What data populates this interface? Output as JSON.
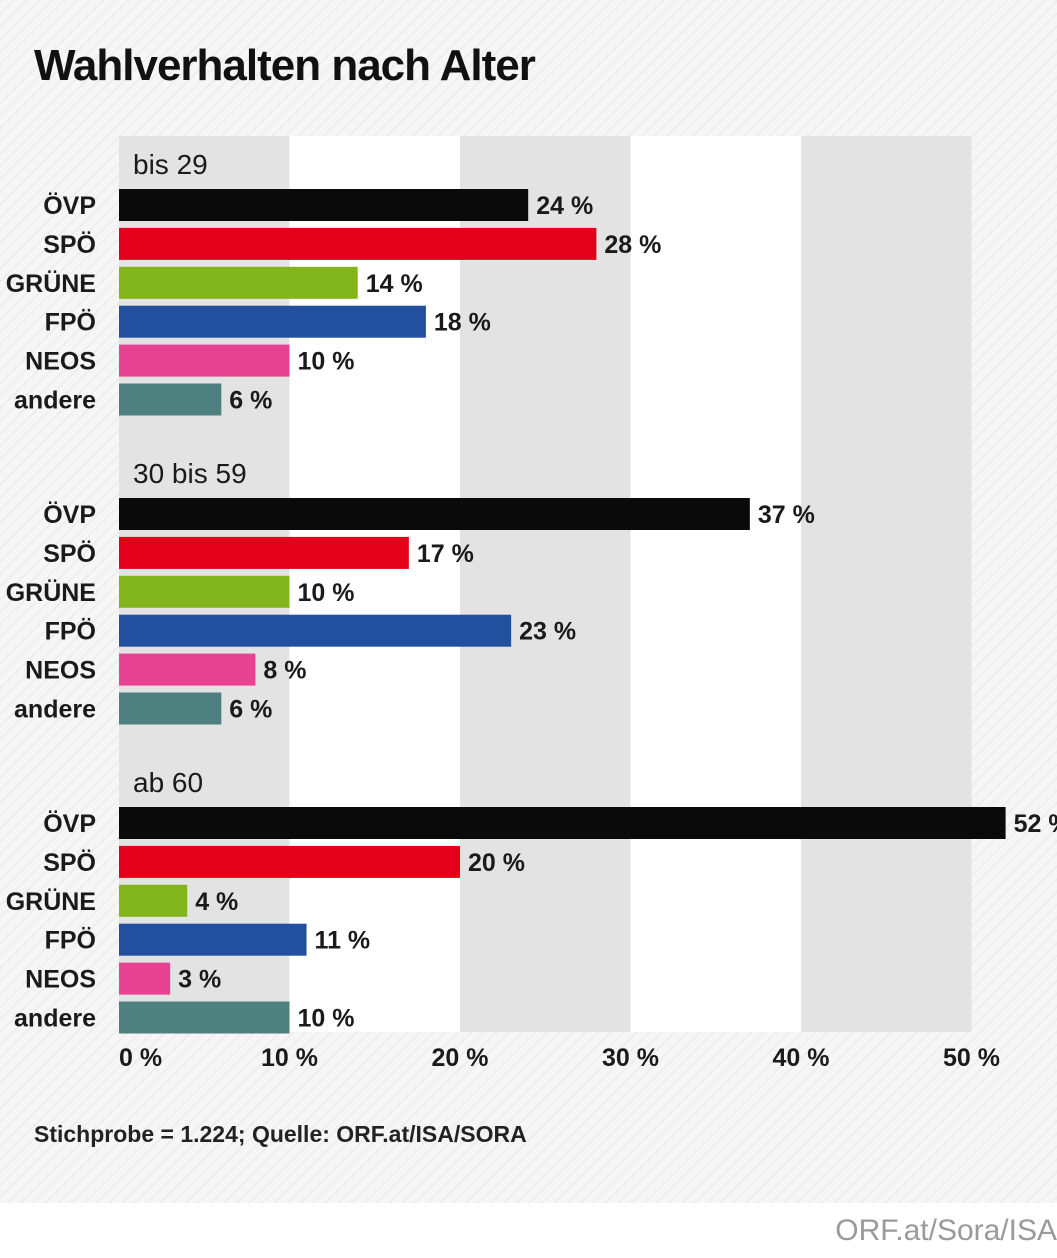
{
  "header": {
    "title": "Wahlverhalten nach Alter"
  },
  "footer": {
    "source": "Stichprobe = 1.224; Quelle: ORF.at/ISA/SORA",
    "credit": "ORF.at/Sora/ISA"
  },
  "chart_data": {
    "type": "bar",
    "orientation": "horizontal",
    "title": "Wahlverhalten nach Alter",
    "xlabel": "",
    "ylabel": "",
    "xlim": [
      0,
      50
    ],
    "x_ticks": [
      0,
      10,
      20,
      30,
      40,
      50
    ],
    "x_tick_labels": [
      "0 %",
      "10 %",
      "20 %",
      "30 %",
      "40 %",
      "50 %"
    ],
    "value_suffix": " %",
    "grid": "alternating vertical bands",
    "legend": "none",
    "categories": [
      "ÖVP",
      "SPÖ",
      "GRÜNE",
      "FPÖ",
      "NEOS",
      "andere"
    ],
    "category_colors": [
      "#0a0a0a",
      "#e2001a",
      "#82b41b",
      "#23509e",
      "#e84393",
      "#4f8080"
    ],
    "groups": [
      {
        "name": "bis 29",
        "values": [
          24,
          28,
          14,
          18,
          10,
          6
        ]
      },
      {
        "name": "30 bis 59",
        "values": [
          37,
          17,
          10,
          23,
          8,
          6
        ]
      },
      {
        "name": "ab 60",
        "values": [
          52,
          20,
          4,
          11,
          3,
          10
        ]
      }
    ]
  }
}
